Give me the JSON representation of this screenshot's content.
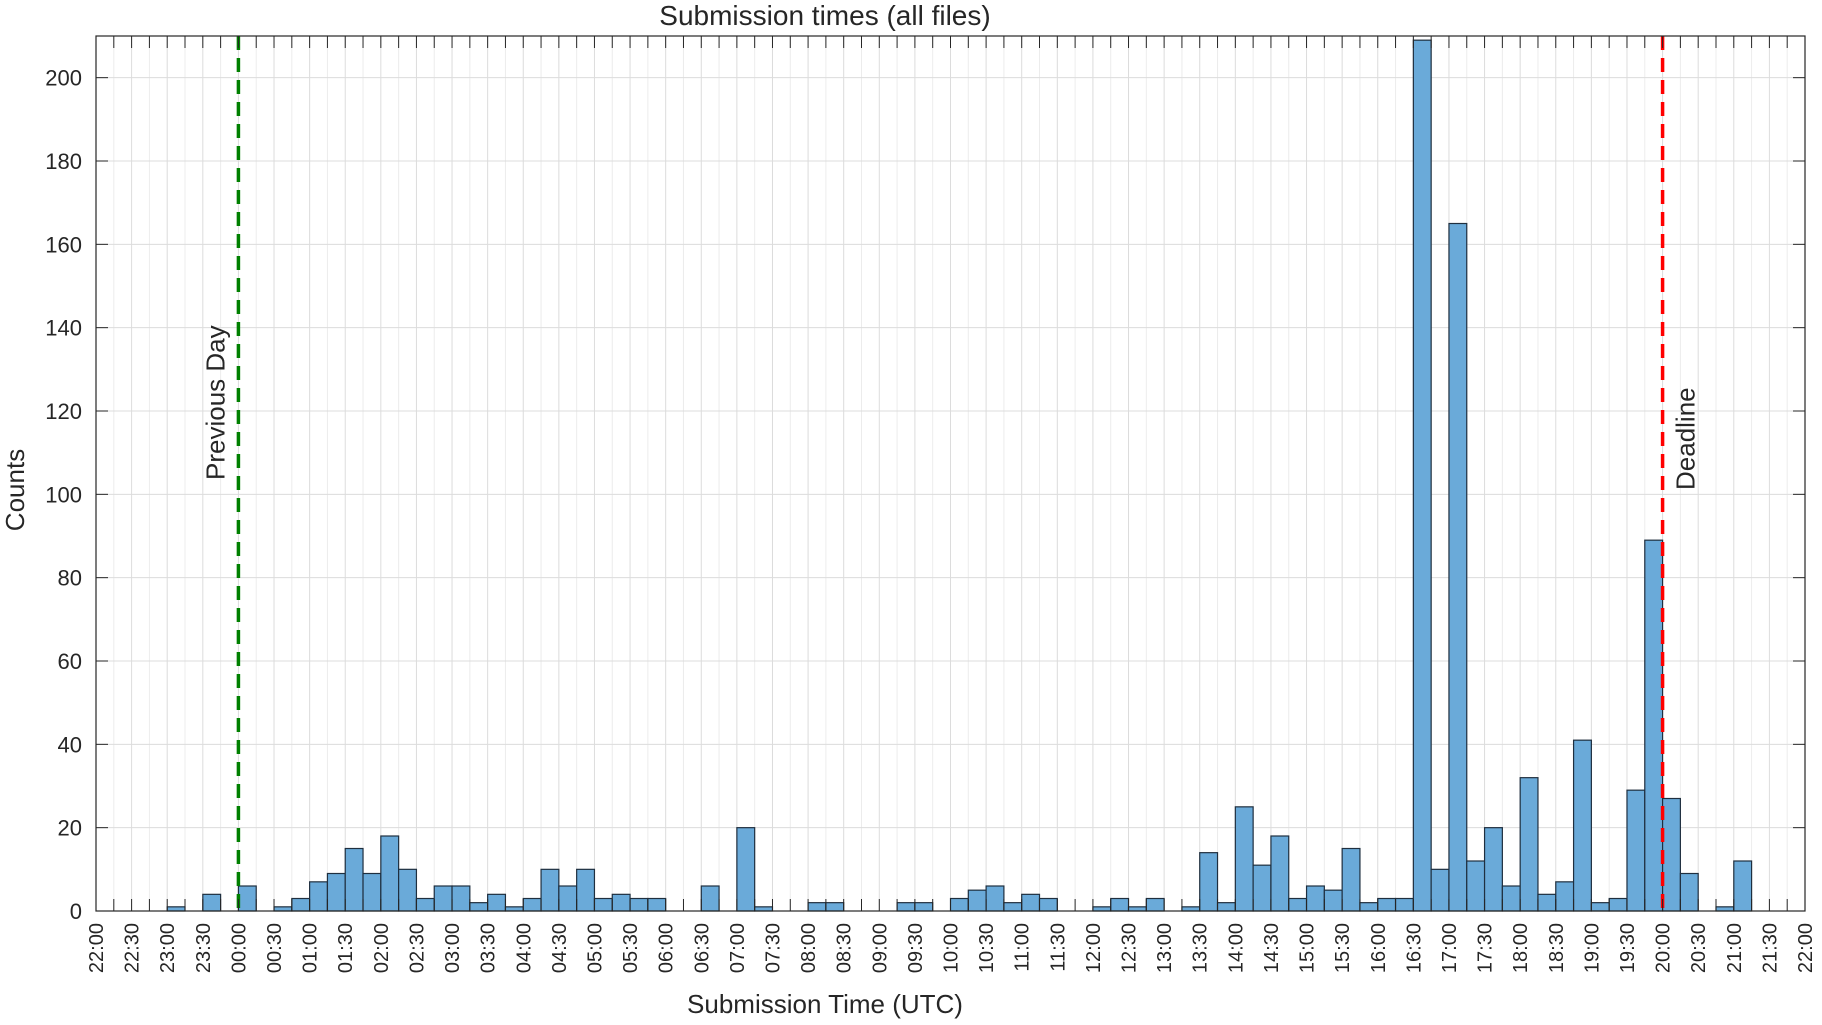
{
  "chart_data": {
    "type": "bar",
    "title": "Submission times (all files)",
    "xlabel": "Submission Time (UTC)",
    "ylabel": "Counts",
    "x_tick_labels": [
      "22:00",
      "22:30",
      "23:00",
      "23:30",
      "00:00",
      "00:30",
      "01:00",
      "01:30",
      "02:00",
      "02:30",
      "03:00",
      "03:30",
      "04:00",
      "04:30",
      "05:00",
      "05:30",
      "06:00",
      "06:30",
      "07:00",
      "07:30",
      "08:00",
      "08:30",
      "09:00",
      "09:30",
      "10:00",
      "10:30",
      "11:00",
      "11:30",
      "12:00",
      "12:30",
      "13:00",
      "13:30",
      "14:00",
      "14:30",
      "15:00",
      "15:30",
      "16:00",
      "16:30",
      "17:00",
      "17:30",
      "18:00",
      "18:30",
      "19:00",
      "19:30",
      "20:00",
      "20:30",
      "21:00",
      "21:30",
      "22:00"
    ],
    "bin_minutes": 15,
    "bin_start_times": [
      "22:00",
      "22:15",
      "22:30",
      "22:45",
      "23:00",
      "23:15",
      "23:30",
      "23:45",
      "00:00",
      "00:15",
      "00:30",
      "00:45",
      "01:00",
      "01:15",
      "01:30",
      "01:45",
      "02:00",
      "02:15",
      "02:30",
      "02:45",
      "03:00",
      "03:15",
      "03:30",
      "03:45",
      "04:00",
      "04:15",
      "04:30",
      "04:45",
      "05:00",
      "05:15",
      "05:30",
      "05:45",
      "06:00",
      "06:15",
      "06:30",
      "06:45",
      "07:00",
      "07:15",
      "07:30",
      "07:45",
      "08:00",
      "08:15",
      "08:30",
      "08:45",
      "09:00",
      "09:15",
      "09:30",
      "09:45",
      "10:00",
      "10:15",
      "10:30",
      "10:45",
      "11:00",
      "11:15",
      "11:30",
      "11:45",
      "12:00",
      "12:15",
      "12:30",
      "12:45",
      "13:00",
      "13:15",
      "13:30",
      "13:45",
      "14:00",
      "14:15",
      "14:30",
      "14:45",
      "15:00",
      "15:15",
      "15:30",
      "15:45",
      "16:00",
      "16:15",
      "16:30",
      "16:45",
      "17:00",
      "17:15",
      "17:30",
      "17:45",
      "18:00",
      "18:15",
      "18:30",
      "18:45",
      "19:00",
      "19:15",
      "19:30",
      "19:45",
      "20:00",
      "20:15",
      "20:30",
      "20:45",
      "21:00",
      "21:15",
      "21:30",
      "21:45"
    ],
    "values": [
      0,
      0,
      0,
      0,
      1,
      0,
      4,
      0,
      6,
      0,
      1,
      3,
      7,
      9,
      15,
      9,
      18,
      10,
      3,
      6,
      6,
      2,
      4,
      1,
      3,
      10,
      6,
      10,
      3,
      4,
      3,
      3,
      0,
      0,
      6,
      0,
      20,
      1,
      0,
      0,
      2,
      2,
      0,
      0,
      0,
      2,
      2,
      0,
      3,
      5,
      6,
      2,
      4,
      3,
      0,
      0,
      1,
      3,
      1,
      3,
      0,
      1,
      14,
      2,
      25,
      11,
      18,
      3,
      6,
      5,
      15,
      2,
      3,
      3,
      209,
      10,
      165,
      12,
      20,
      6,
      32,
      4,
      7,
      41,
      2,
      3,
      29,
      89,
      27,
      9,
      0,
      1,
      12,
      0,
      0,
      0
    ],
    "ylim": [
      0,
      210
    ],
    "y_ticks": [
      0,
      20,
      40,
      60,
      80,
      100,
      120,
      140,
      160,
      180,
      200
    ],
    "grid": true,
    "bar_color": "#6aaad9",
    "bar_edge_color": "#1f2f3f",
    "annotations": [
      {
        "label": "Previous Day",
        "x": "00:00",
        "color": "#008000",
        "style": "dashed"
      },
      {
        "label": "Deadline",
        "x": "20:00",
        "color": "#ff0000",
        "style": "dashed"
      }
    ]
  }
}
